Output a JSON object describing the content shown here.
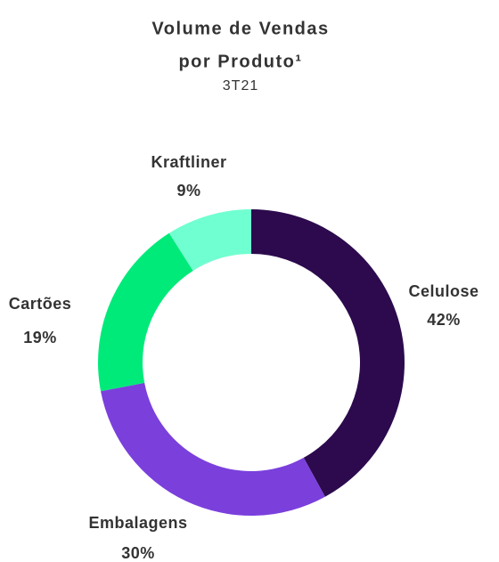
{
  "chart_data": {
    "type": "donut",
    "title": [
      "Volume de Vendas",
      "por Produto¹"
    ],
    "subtitle": "3T21",
    "categories": [
      "Celulose",
      "Embalagens",
      "Cartões",
      "Kraftliner"
    ],
    "values": [
      42,
      30,
      19,
      9
    ],
    "value_labels": [
      "42%",
      "30%",
      "19%",
      "9%"
    ],
    "colors": [
      "#2c0a4d",
      "#7b3fdc",
      "#00ea7a",
      "#70ffd0"
    ]
  }
}
